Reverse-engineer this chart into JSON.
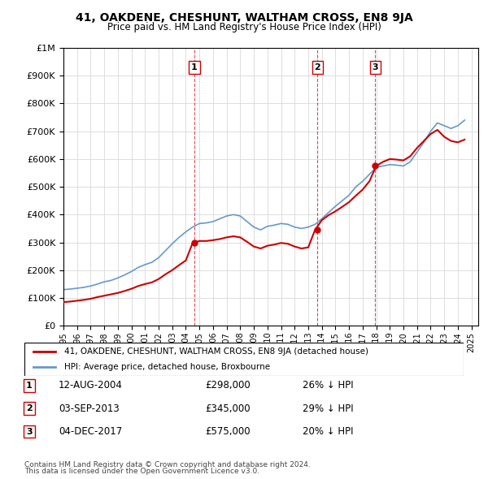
{
  "title": "41, OAKDENE, CHESHUNT, WALTHAM CROSS, EN8 9JA",
  "subtitle": "Price paid vs. HM Land Registry's House Price Index (HPI)",
  "legend_line1": "41, OAKDENE, CHESHUNT, WALTHAM CROSS, EN8 9JA (detached house)",
  "legend_line2": "HPI: Average price, detached house, Broxbourne",
  "sale_dates": [
    "12-AUG-2004",
    "03-SEP-2013",
    "04-DEC-2017"
  ],
  "sale_prices": [
    298000,
    345000,
    575000
  ],
  "sale_hpi_pct": [
    "26%",
    "29%",
    "20%"
  ],
  "sale_years": [
    2004.62,
    2013.67,
    2017.92
  ],
  "footnote1": "Contains HM Land Registry data © Crown copyright and database right 2024.",
  "footnote2": "This data is licensed under the Open Government Licence v3.0.",
  "red_color": "#cc0000",
  "blue_color": "#6699cc",
  "background_color": "#ffffff",
  "grid_color": "#dddddd",
  "ylim": [
    0,
    1000000
  ],
  "xlim_start": 1995.0,
  "xlim_end": 2025.5,
  "hpi_data": {
    "years": [
      1995.0,
      1995.5,
      1996.0,
      1996.5,
      1997.0,
      1997.5,
      1998.0,
      1998.5,
      1999.0,
      1999.5,
      2000.0,
      2000.5,
      2001.0,
      2001.5,
      2002.0,
      2002.5,
      2003.0,
      2003.5,
      2004.0,
      2004.5,
      2005.0,
      2005.5,
      2006.0,
      2006.5,
      2007.0,
      2007.5,
      2008.0,
      2008.5,
      2009.0,
      2009.5,
      2010.0,
      2010.5,
      2011.0,
      2011.5,
      2012.0,
      2012.5,
      2013.0,
      2013.5,
      2014.0,
      2014.5,
      2015.0,
      2015.5,
      2016.0,
      2016.5,
      2017.0,
      2017.5,
      2018.0,
      2018.5,
      2019.0,
      2019.5,
      2020.0,
      2020.5,
      2021.0,
      2021.5,
      2022.0,
      2022.5,
      2023.0,
      2023.5,
      2024.0,
      2024.5
    ],
    "values": [
      130000,
      132000,
      135000,
      138000,
      143000,
      150000,
      158000,
      163000,
      172000,
      183000,
      195000,
      210000,
      220000,
      228000,
      245000,
      270000,
      295000,
      318000,
      338000,
      355000,
      368000,
      370000,
      375000,
      385000,
      395000,
      400000,
      395000,
      375000,
      355000,
      345000,
      358000,
      362000,
      368000,
      365000,
      355000,
      350000,
      355000,
      365000,
      385000,
      408000,
      430000,
      450000,
      470000,
      500000,
      520000,
      545000,
      570000,
      575000,
      580000,
      578000,
      575000,
      590000,
      625000,
      660000,
      700000,
      730000,
      720000,
      710000,
      720000,
      740000
    ]
  },
  "property_data": {
    "years": [
      1995.0,
      1995.5,
      1996.0,
      1996.5,
      1997.0,
      1997.5,
      1998.0,
      1998.5,
      1999.0,
      1999.5,
      2000.0,
      2000.5,
      2001.0,
      2001.5,
      2002.0,
      2002.5,
      2003.0,
      2003.5,
      2004.0,
      2004.5,
      2005.0,
      2005.5,
      2006.0,
      2006.5,
      2007.0,
      2007.5,
      2008.0,
      2008.5,
      2009.0,
      2009.5,
      2010.0,
      2010.5,
      2011.0,
      2011.5,
      2012.0,
      2012.5,
      2013.0,
      2013.5,
      2014.0,
      2014.5,
      2015.0,
      2015.5,
      2016.0,
      2016.5,
      2017.0,
      2017.5,
      2018.0,
      2018.5,
      2019.0,
      2019.5,
      2020.0,
      2020.5,
      2021.0,
      2021.5,
      2022.0,
      2022.5,
      2023.0,
      2023.5,
      2024.0,
      2024.5
    ],
    "values": [
      85000,
      87000,
      90000,
      93000,
      97000,
      103000,
      108000,
      113000,
      118000,
      125000,
      133000,
      143000,
      150000,
      156000,
      168000,
      185000,
      200000,
      218000,
      235000,
      298000,
      305000,
      305000,
      308000,
      312000,
      318000,
      322000,
      318000,
      302000,
      285000,
      278000,
      288000,
      292000,
      298000,
      295000,
      285000,
      278000,
      282000,
      345000,
      380000,
      398000,
      412000,
      428000,
      445000,
      468000,
      490000,
      520000,
      575000,
      590000,
      600000,
      598000,
      595000,
      610000,
      640000,
      665000,
      690000,
      705000,
      680000,
      665000,
      660000,
      670000
    ]
  }
}
